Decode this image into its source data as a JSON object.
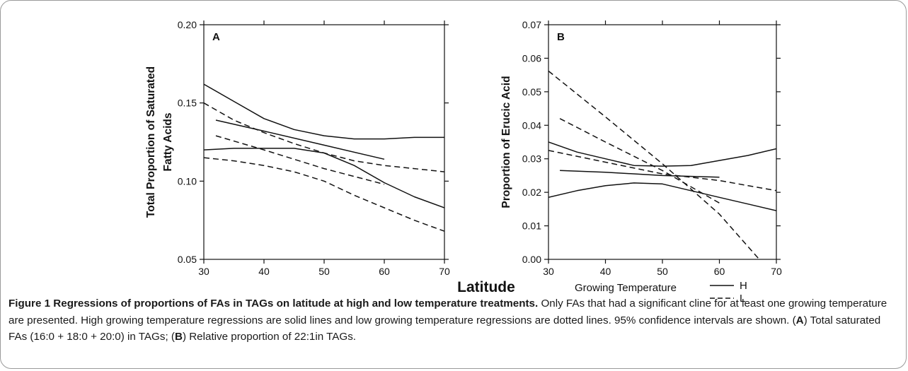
{
  "figure": {
    "x_label": "Latitude",
    "legend": {
      "title": "Growing Temperature",
      "entries": [
        {
          "label": "H",
          "style": "solid"
        },
        {
          "label": "L",
          "style": "dashed"
        }
      ]
    }
  },
  "chart_data": [
    {
      "type": "line",
      "panel_label": "A",
      "ylabel": "Total Proportion of Saturated Fatty Acids",
      "ylabel_lines": [
        "Total Proportion of Saturated",
        "Fatty Acids"
      ],
      "xlim": [
        30,
        70
      ],
      "ylim": [
        0.05,
        0.2
      ],
      "x_ticks": [
        30,
        40,
        50,
        60,
        70
      ],
      "y_ticks": [
        0.05,
        0.1,
        0.15,
        0.2
      ],
      "y_tick_labels": [
        "0.05",
        "0.10",
        "0.15",
        "0.20"
      ],
      "grid": false,
      "series": [
        {
          "style": "solid",
          "values": [
            [
              30,
              0.162
            ],
            [
              35,
              0.151
            ],
            [
              40,
              0.14
            ],
            [
              45,
              0.133
            ],
            [
              50,
              0.129
            ],
            [
              55,
              0.127
            ],
            [
              60,
              0.127
            ],
            [
              65,
              0.128
            ],
            [
              70,
              0.128
            ]
          ]
        },
        {
          "style": "solid",
          "values": [
            [
              32,
              0.139
            ],
            [
              40,
              0.132
            ],
            [
              50,
              0.123
            ],
            [
              60,
              0.114
            ]
          ]
        },
        {
          "style": "solid",
          "values": [
            [
              30,
              0.12
            ],
            [
              35,
              0.121
            ],
            [
              40,
              0.121
            ],
            [
              45,
              0.121
            ],
            [
              50,
              0.118
            ],
            [
              55,
              0.11
            ],
            [
              60,
              0.099
            ],
            [
              65,
              0.09
            ],
            [
              70,
              0.083
            ]
          ]
        },
        {
          "style": "dashed",
          "values": [
            [
              30,
              0.15
            ],
            [
              35,
              0.139
            ],
            [
              40,
              0.131
            ],
            [
              45,
              0.124
            ],
            [
              50,
              0.118
            ],
            [
              55,
              0.113
            ],
            [
              60,
              0.11
            ],
            [
              65,
              0.108
            ],
            [
              70,
              0.106
            ]
          ]
        },
        {
          "style": "dashed",
          "values": [
            [
              32,
              0.129
            ],
            [
              40,
              0.12
            ],
            [
              50,
              0.108
            ],
            [
              60,
              0.098
            ]
          ]
        },
        {
          "style": "dashed",
          "values": [
            [
              30,
              0.115
            ],
            [
              35,
              0.113
            ],
            [
              40,
              0.11
            ],
            [
              45,
              0.106
            ],
            [
              50,
              0.1
            ],
            [
              55,
              0.091
            ],
            [
              60,
              0.083
            ],
            [
              65,
              0.075
            ],
            [
              70,
              0.068
            ]
          ]
        }
      ]
    },
    {
      "type": "line",
      "panel_label": "B",
      "ylabel": "Proportion of Erucic Acid",
      "ylabel_lines": [
        "Proportion of Erucic Acid"
      ],
      "xlim": [
        30,
        70
      ],
      "ylim": [
        0.0,
        0.07
      ],
      "x_ticks": [
        30,
        40,
        50,
        60,
        70
      ],
      "y_ticks": [
        0.0,
        0.01,
        0.02,
        0.03,
        0.04,
        0.05,
        0.06,
        0.07
      ],
      "y_tick_labels": [
        "0.00",
        "0.01",
        "0.02",
        "0.03",
        "0.04",
        "0.05",
        "0.06",
        "0.07"
      ],
      "grid": false,
      "series": [
        {
          "style": "solid",
          "values": [
            [
              30,
              0.035
            ],
            [
              35,
              0.032
            ],
            [
              40,
              0.03
            ],
            [
              45,
              0.028
            ],
            [
              50,
              0.0278
            ],
            [
              55,
              0.028
            ],
            [
              60,
              0.0295
            ],
            [
              65,
              0.031
            ],
            [
              70,
              0.033
            ]
          ]
        },
        {
          "style": "solid",
          "values": [
            [
              32,
              0.0265
            ],
            [
              40,
              0.026
            ],
            [
              50,
              0.025
            ],
            [
              60,
              0.0245
            ]
          ]
        },
        {
          "style": "solid",
          "values": [
            [
              30,
              0.0185
            ],
            [
              35,
              0.0205
            ],
            [
              40,
              0.022
            ],
            [
              45,
              0.0228
            ],
            [
              50,
              0.0225
            ],
            [
              55,
              0.0205
            ],
            [
              60,
              0.0185
            ],
            [
              65,
              0.0165
            ],
            [
              70,
              0.0145
            ]
          ]
        },
        {
          "style": "dashed",
          "values": [
            [
              30,
              0.0325
            ],
            [
              40,
              0.029
            ],
            [
              50,
              0.0255
            ],
            [
              60,
              0.0235
            ],
            [
              70,
              0.0205
            ]
          ]
        },
        {
          "style": "dashed",
          "values": [
            [
              32,
              0.042
            ],
            [
              40,
              0.035
            ],
            [
              50,
              0.0265
            ],
            [
              60,
              0.0168
            ]
          ]
        },
        {
          "style": "dashed",
          "values": [
            [
              30,
              0.0562
            ],
            [
              40,
              0.0425
            ],
            [
              50,
              0.0285
            ],
            [
              60,
              0.0135
            ],
            [
              67,
              0.0
            ]
          ]
        }
      ]
    }
  ],
  "caption": {
    "title": "Figure 1 Regressions of proportions of FAs in TAGs on latitude at high and low temperature treatments.",
    "body_1": " Only FAs that had a significant cline for at least one growing temperature are presented. High growing temperature regressions are solid lines and low growing temperature regressions are dotted lines. 95% confidence intervals are shown. (",
    "ref_a": "A",
    "body_2": ") Total saturated FAs (16:0 + 18:0 + 20:0) in TAGs; (",
    "ref_b": "B",
    "body_3": ") Relative proportion of 22:1in TAGs."
  }
}
